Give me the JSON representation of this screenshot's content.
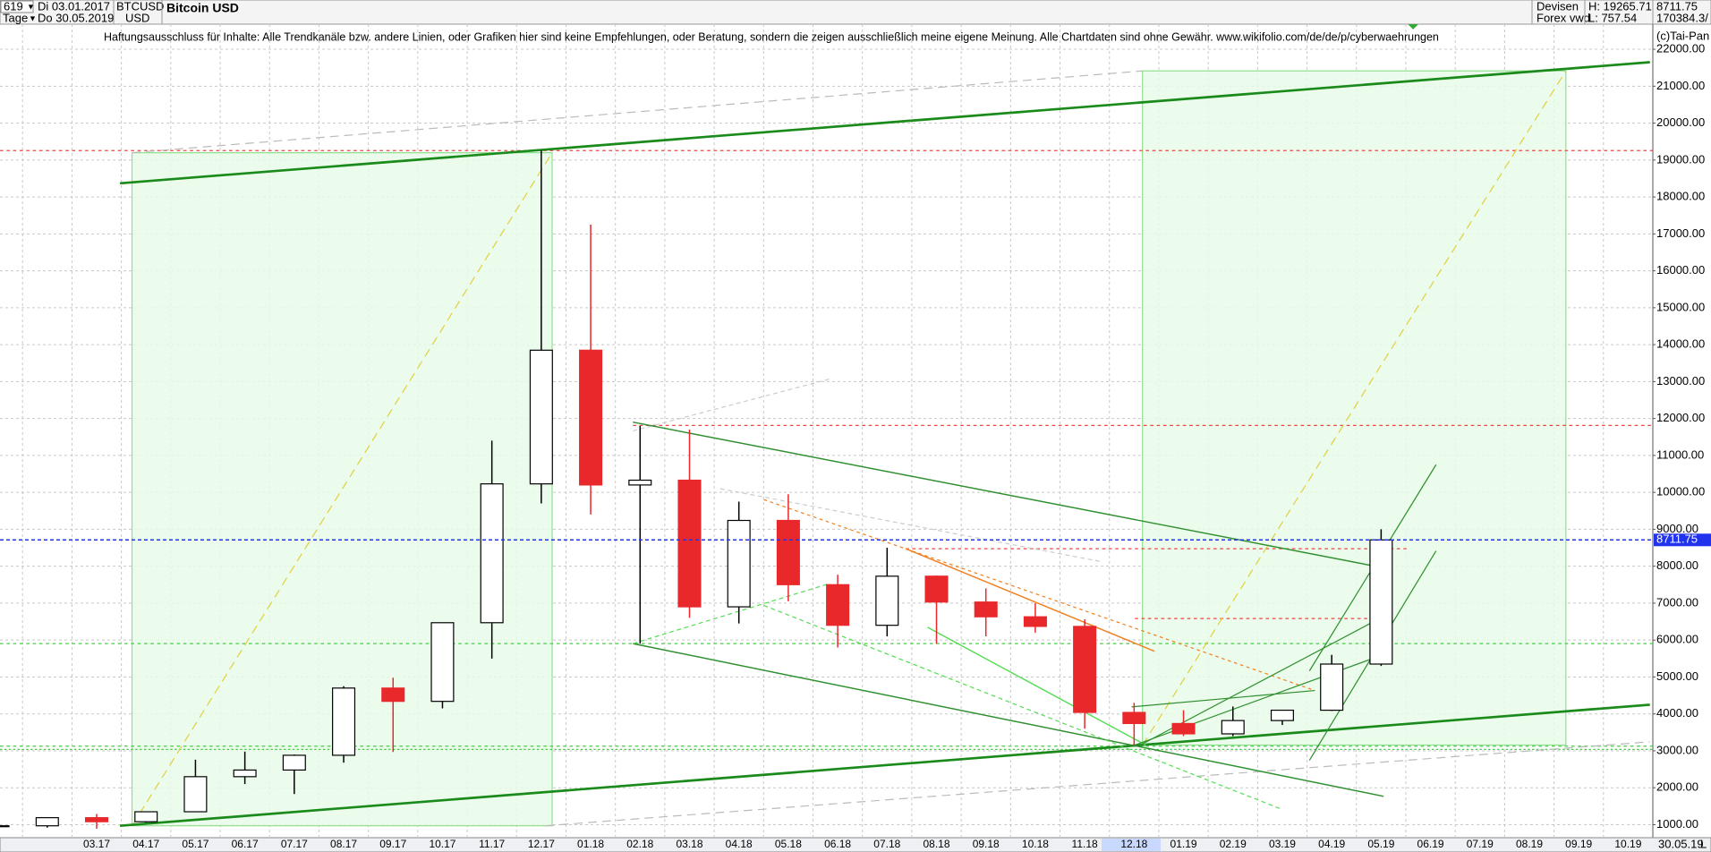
{
  "header": {
    "count": "619",
    "start_date": "Di 03.01.2017",
    "period": "Tage",
    "end_date": "Do 30.05.2019",
    "symbol": "BTCUSD",
    "currency": "USD",
    "market": "Devisen",
    "source": "Forex vwd",
    "high": "H: 19265.71",
    "low": "L: 757.54",
    "last": "8711.75",
    "volume": "170384.3/",
    "disclaimer": "Haftungsausschluss für Inhalte: Alle Trendkanäle bzw. andere Linien, oder Grafiken hier sind keine Empfehlungen, oder Beratung, sondern die zeigen ausschließlich meine eigene Meinung. Alle Chartdaten sind ohne Gewähr.  www.wikifolio.com/de/de/p/cyberwaehrungen",
    "copyright": "(c)Tai-Pan",
    "footer_date": "30.05.19",
    "footer_mode": "L"
  },
  "chart_data": {
    "type": "candlestick",
    "title": "Bitcoin USD",
    "categories": [
      null,
      null,
      "03.17",
      "04.17",
      "05.17",
      "06.17",
      "07.17",
      "08.17",
      "09.17",
      "10.17",
      "11.17",
      "12.17",
      "01.18",
      "02.18",
      "03.18",
      "04.18",
      "05.18",
      "06.18",
      "07.18",
      "08.18",
      "09.18",
      "10.18",
      "11.18",
      "12.18",
      "01.19",
      "02.19",
      "03.19",
      "04.19",
      "05.19",
      "06.19",
      "07.19",
      "08.19",
      "09.19",
      "10.19"
    ],
    "open": [
      970,
      970,
      1190,
      1080,
      1350,
      2300,
      2480,
      2880,
      4700,
      4340,
      6470,
      10230,
      13850,
      10200,
      10330,
      6900,
      9240,
      7500,
      6400,
      7730,
      7030,
      6630,
      6370,
      4040,
      3740,
      3460,
      3820,
      4100,
      5350,
      null,
      null,
      null,
      null,
      null
    ],
    "high": [
      1150,
      1200,
      1290,
      1350,
      2760,
      2980,
      2900,
      4750,
      4980,
      6470,
      11400,
      19265.71,
      17250,
      11800,
      11700,
      9750,
      9950,
      7770,
      8500,
      7750,
      7400,
      7000,
      6560,
      4300,
      4100,
      4200,
      4100,
      5600,
      9000,
      null,
      null,
      null,
      null,
      null
    ],
    "low": [
      757.54,
      920,
      890,
      1060,
      1350,
      2100,
      1830,
      2680,
      2970,
      4150,
      5500,
      9700,
      9400,
      5900,
      6600,
      6450,
      7050,
      5800,
      6100,
      5900,
      6100,
      6200,
      3600,
      3150,
      3400,
      3400,
      3700,
      4080,
      5300,
      null,
      null,
      null,
      null,
      null
    ],
    "close": [
      970,
      1190,
      1080,
      1350,
      2300,
      2480,
      2880,
      4700,
      4340,
      6470,
      10230,
      13850,
      10200,
      10330,
      6900,
      9240,
      7500,
      6400,
      7730,
      7030,
      6630,
      6370,
      4040,
      3740,
      3460,
      3820,
      4100,
      5350,
      8711.75,
      null,
      null,
      null,
      null,
      null
    ],
    "up_color": "#000000",
    "down_color": "#e8282b",
    "ylim": [
      648,
      22680
    ],
    "yticks": [
      {
        "value": 1000,
        "label": "1000.00"
      },
      {
        "value": 2000,
        "label": "2000.00"
      },
      {
        "value": 3000,
        "label": "3000.00"
      },
      {
        "value": 4000,
        "label": "4000.00"
      },
      {
        "value": 5000,
        "label": "5000.00"
      },
      {
        "value": 6000,
        "label": "6000.00"
      },
      {
        "value": 7000,
        "label": "7000.00"
      },
      {
        "value": 8000,
        "label": "8000.00"
      },
      {
        "value": 9000,
        "label": "9000.00"
      },
      {
        "value": 10000,
        "label": "10000.00"
      },
      {
        "value": 11000,
        "label": "11000.00"
      },
      {
        "value": 12000,
        "label": "12000.00"
      },
      {
        "value": 13000,
        "label": "13000.00"
      },
      {
        "value": 14000,
        "label": "14000.00"
      },
      {
        "value": 15000,
        "label": "15000.00"
      },
      {
        "value": 16000,
        "label": "16000.00"
      },
      {
        "value": 17000,
        "label": "17000.00"
      },
      {
        "value": 18000,
        "label": "18000.00"
      },
      {
        "value": 19000,
        "label": "19000.00"
      },
      {
        "value": 20000,
        "label": "20000.00"
      },
      {
        "value": 21000,
        "label": "21000.00"
      },
      {
        "value": 22000,
        "label": "22000.00"
      }
    ],
    "price_line": {
      "value": 8711.75,
      "label": "8711.75",
      "color": "#2233ee"
    },
    "grid": true
  }
}
